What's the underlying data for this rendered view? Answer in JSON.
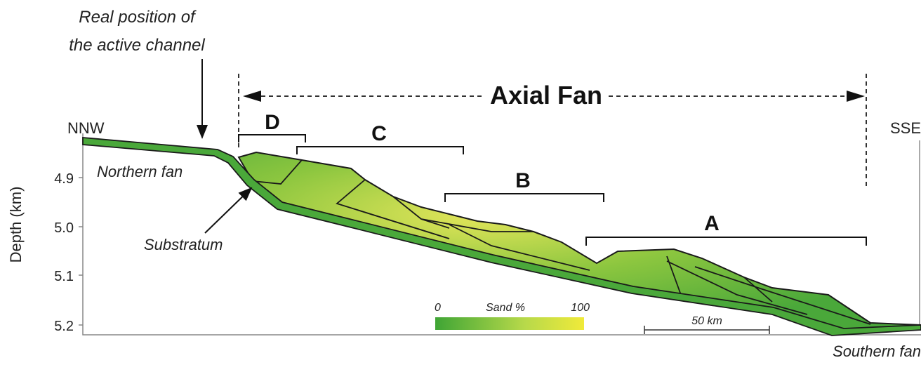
{
  "annotation": {
    "lines": [
      "Real position of",
      "the active channel"
    ]
  },
  "title": "Axial Fan",
  "directions": {
    "left": "NNW",
    "right": "SSE"
  },
  "axis": {
    "label": "Depth (km)",
    "ticks": [
      "4.9",
      "5.0",
      "5.1",
      "5.2"
    ]
  },
  "units": [
    "D",
    "C",
    "B",
    "A"
  ],
  "labels": {
    "northern": "Northern fan",
    "substratum": "Substratum",
    "southern": "Southern fan"
  },
  "legend": {
    "min": "0",
    "title": "Sand %",
    "max": "100",
    "scale": "50 km"
  }
}
